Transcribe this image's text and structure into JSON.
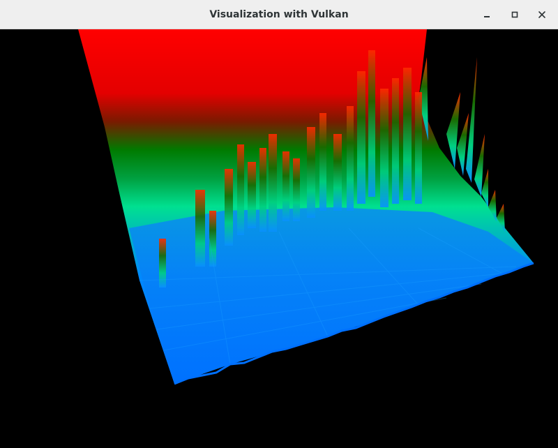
{
  "window": {
    "title": "Visualization with Vulkan",
    "controls": {
      "minimize": "minimize-icon",
      "maximize": "maximize-icon",
      "close": "close-icon"
    }
  },
  "viewport": {
    "content": "3d-height-field-surface",
    "background_color": "#000000",
    "colormap": [
      "#0080ff",
      "#00e090",
      "#008000",
      "#ff0000"
    ]
  }
}
